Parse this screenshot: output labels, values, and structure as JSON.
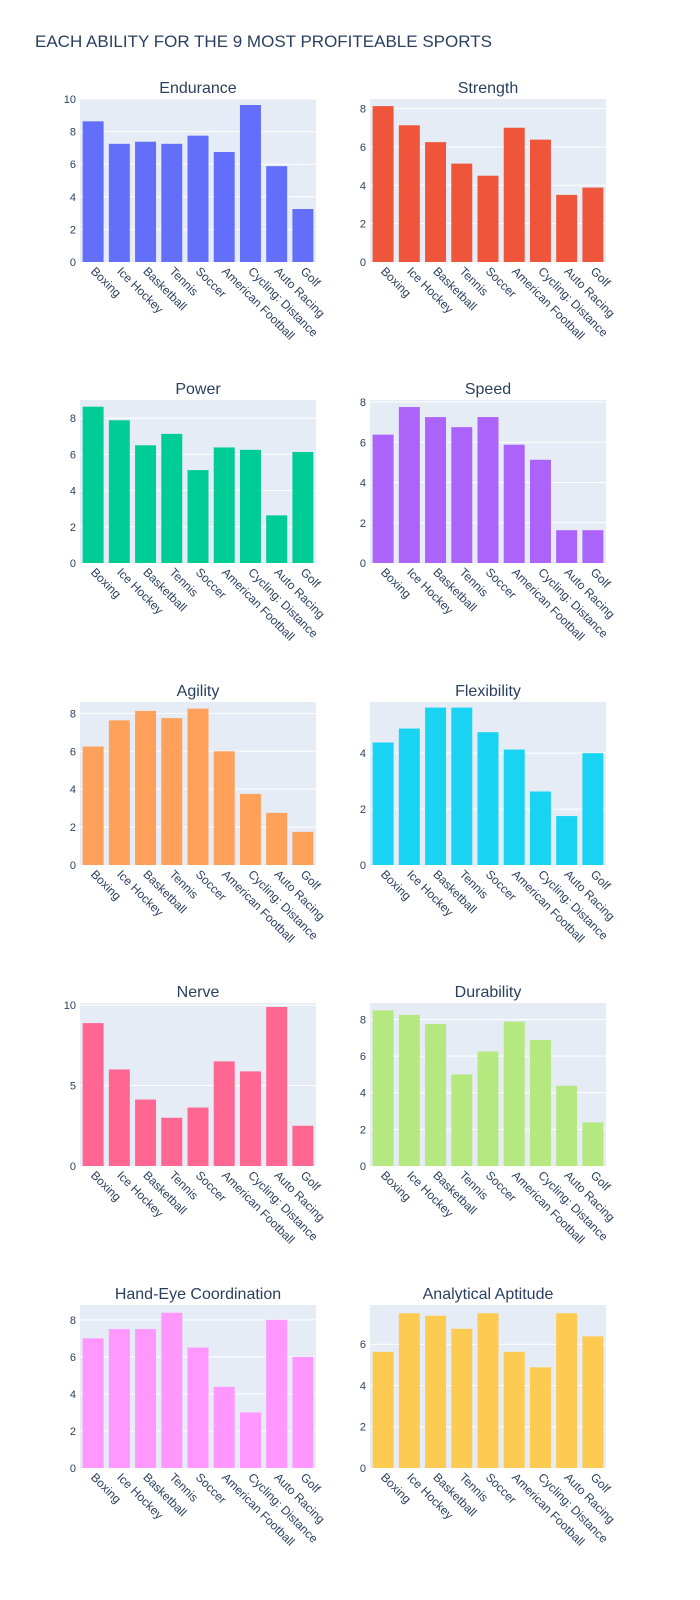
{
  "title": "EACH ABILITY FOR THE 9 MOST PROFITEABLE SPORTS",
  "chart_data": [
    {
      "type": "bar",
      "title": "Endurance",
      "color": "#636efa",
      "ylim": [
        0,
        10
      ],
      "ticks": [
        0,
        2,
        4,
        6,
        8,
        10
      ],
      "categories": [
        "Boxing",
        "Ice Hockey",
        "Basketball",
        "Tennis",
        "Soccer",
        "American Football",
        "Cycling: Distance",
        "Auto Racing",
        "Golf"
      ],
      "values": [
        8.63,
        7.25,
        7.38,
        7.25,
        7.75,
        6.75,
        9.63,
        5.88,
        3.25
      ]
    },
    {
      "type": "bar",
      "title": "Strength",
      "color": "#ef553b",
      "ylim": [
        0,
        8.5
      ],
      "ticks": [
        0,
        2,
        4,
        6,
        8
      ],
      "categories": [
        "Boxing",
        "Ice Hockey",
        "Basketball",
        "Tennis",
        "Soccer",
        "American Football",
        "Cycling: Distance",
        "Auto Racing",
        "Golf"
      ],
      "values": [
        8.13,
        7.13,
        6.25,
        5.13,
        4.5,
        7.0,
        6.38,
        3.5,
        3.88
      ]
    },
    {
      "type": "bar",
      "title": "Power",
      "color": "#00cc96",
      "ylim": [
        0,
        9
      ],
      "ticks": [
        0,
        2,
        4,
        6,
        8
      ],
      "categories": [
        "Boxing",
        "Ice Hockey",
        "Basketball",
        "Tennis",
        "Soccer",
        "American Football",
        "Cycling: Distance",
        "Auto Racing",
        "Golf"
      ],
      "values": [
        8.63,
        7.88,
        6.5,
        7.13,
        5.13,
        6.38,
        6.25,
        2.63,
        6.13
      ]
    },
    {
      "type": "bar",
      "title": "Speed",
      "color": "#ab63fa",
      "ylim": [
        0,
        8.1
      ],
      "ticks": [
        0,
        2,
        4,
        6,
        8
      ],
      "categories": [
        "Boxing",
        "Ice Hockey",
        "Basketball",
        "Tennis",
        "Soccer",
        "American Football",
        "Cycling: Distance",
        "Auto Racing",
        "Golf"
      ],
      "values": [
        6.38,
        7.75,
        7.25,
        6.75,
        7.25,
        5.88,
        5.13,
        1.63,
        1.63
      ]
    },
    {
      "type": "bar",
      "title": "Agility",
      "color": "#ffa15a",
      "ylim": [
        0,
        8.6
      ],
      "ticks": [
        0,
        2,
        4,
        6,
        8
      ],
      "categories": [
        "Boxing",
        "Ice Hockey",
        "Basketball",
        "Tennis",
        "Soccer",
        "American Football",
        "Cycling: Distance",
        "Auto Racing",
        "Golf"
      ],
      "values": [
        6.25,
        7.63,
        8.13,
        7.75,
        8.25,
        6.0,
        3.75,
        2.75,
        1.75
      ]
    },
    {
      "type": "bar",
      "title": "Flexibility",
      "color": "#19d3f3",
      "ylim": [
        0,
        5.83
      ],
      "ticks": [
        0,
        2,
        4
      ],
      "categories": [
        "Boxing",
        "Ice Hockey",
        "Basketball",
        "Tennis",
        "Soccer",
        "American Football",
        "Cycling: Distance",
        "Auto Racing",
        "Golf"
      ],
      "values": [
        4.38,
        4.88,
        5.63,
        5.63,
        4.75,
        4.13,
        2.63,
        1.75,
        4.0
      ]
    },
    {
      "type": "bar",
      "title": "Nerve",
      "color": "#ff6692",
      "ylim": [
        0,
        10.13
      ],
      "ticks": [
        0,
        5,
        10
      ],
      "categories": [
        "Boxing",
        "Ice Hockey",
        "Basketball",
        "Tennis",
        "Soccer",
        "American Football",
        "Cycling: Distance",
        "Auto Racing",
        "Golf"
      ],
      "values": [
        8.88,
        6.0,
        4.13,
        3.0,
        3.63,
        6.5,
        5.88,
        9.88,
        2.5
      ]
    },
    {
      "type": "bar",
      "title": "Durability",
      "color": "#b6e880",
      "ylim": [
        0,
        8.9
      ],
      "ticks": [
        0,
        2,
        4,
        6,
        8
      ],
      "categories": [
        "Boxing",
        "Ice Hockey",
        "Basketball",
        "Tennis",
        "Soccer",
        "American Football",
        "Cycling: Distance",
        "Auto Racing",
        "Golf"
      ],
      "values": [
        8.5,
        8.25,
        7.75,
        5.0,
        6.25,
        7.88,
        6.88,
        4.38,
        2.38
      ]
    },
    {
      "type": "bar",
      "title": "Hand-Eye Coordination",
      "color": "#ff97ff",
      "ylim": [
        0,
        8.8
      ],
      "ticks": [
        0,
        2,
        4,
        6,
        8
      ],
      "categories": [
        "Boxing",
        "Ice Hockey",
        "Basketball",
        "Tennis",
        "Soccer",
        "American Football",
        "Cycling: Distance",
        "Auto Racing",
        "Golf"
      ],
      "values": [
        7.0,
        7.5,
        7.5,
        8.38,
        6.5,
        4.38,
        3.0,
        8.0,
        6.0
      ]
    },
    {
      "type": "bar",
      "title": "Analytical Aptitude",
      "color": "#fecb52",
      "ylim": [
        0,
        7.9
      ],
      "ticks": [
        0,
        2,
        4,
        6
      ],
      "categories": [
        "Boxing",
        "Ice Hockey",
        "Basketball",
        "Tennis",
        "Soccer",
        "American Football",
        "Cycling: Distance",
        "Auto Racing",
        "Golf"
      ],
      "values": [
        5.63,
        7.5,
        7.38,
        6.75,
        7.5,
        5.63,
        4.88,
        7.5,
        6.38
      ]
    }
  ]
}
